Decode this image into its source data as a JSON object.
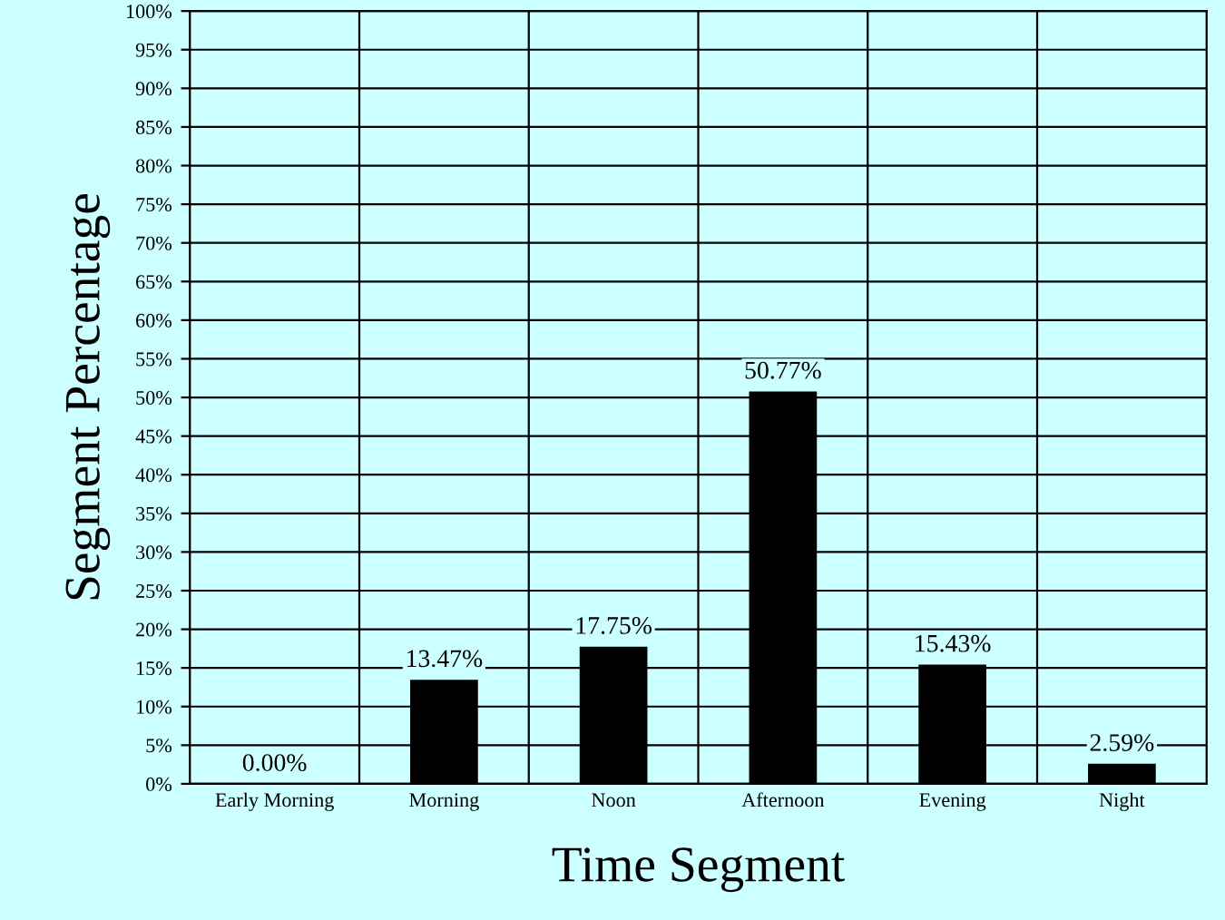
{
  "chart_data": {
    "type": "bar",
    "xlabel": "Time Segment",
    "ylabel": "Segment Percentage",
    "categories": [
      "Early Morning",
      "Morning",
      "Noon",
      "Afternoon",
      "Evening",
      "Night"
    ],
    "values": [
      0,
      13.47,
      17.75,
      50.77,
      15.43,
      2.59
    ],
    "value_labels": [
      "0.00%",
      "13.47%",
      "17.75%",
      "50.77%",
      "15.43%",
      "2.59%"
    ],
    "color": "#000000",
    "ylim": [
      0,
      100
    ],
    "yticks": [
      {
        "value": 0,
        "label": "0%"
      },
      {
        "value": 5,
        "label": "5%"
      },
      {
        "value": 10,
        "label": "10%"
      },
      {
        "value": 15,
        "label": "15%"
      },
      {
        "value": 20,
        "label": "20%"
      },
      {
        "value": 25,
        "label": "25%"
      },
      {
        "value": 30,
        "label": "30%"
      },
      {
        "value": 35,
        "label": "35%"
      },
      {
        "value": 40,
        "label": "40%"
      },
      {
        "value": 45,
        "label": "45%"
      },
      {
        "value": 50,
        "label": "50%"
      },
      {
        "value": 55,
        "label": "55%"
      },
      {
        "value": 60,
        "label": "60%"
      },
      {
        "value": 65,
        "label": "65%"
      },
      {
        "value": 70,
        "label": "70%"
      },
      {
        "value": 75,
        "label": "75%"
      },
      {
        "value": 80,
        "label": "80%"
      },
      {
        "value": 85,
        "label": "85%"
      },
      {
        "value": 90,
        "label": "90%"
      },
      {
        "value": 95,
        "label": "95%"
      },
      {
        "value": 100,
        "label": "100%"
      }
    ],
    "grid": true
  }
}
